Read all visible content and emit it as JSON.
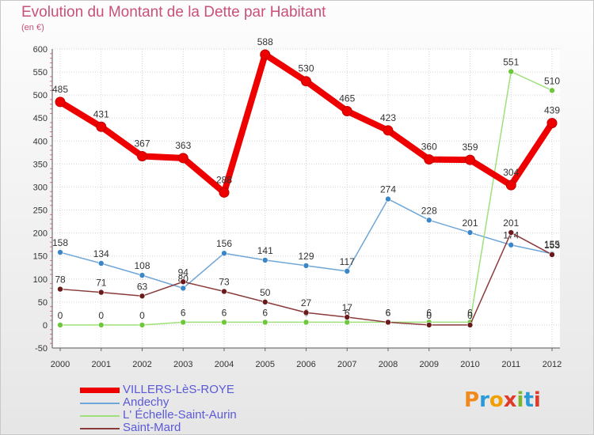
{
  "title": "Evolution du Montant de la Dette par Habitant",
  "subtitle": "(en €)",
  "logo": {
    "letters": [
      "P",
      "r",
      "o",
      "x",
      "i",
      "t",
      "i"
    ],
    "colors": [
      "#f08a1c",
      "#2a9ad8",
      "#f0a000",
      "#e03b2a",
      "#7ab82a",
      "#2a9ad8",
      "#e03b2a"
    ]
  },
  "chart_data": {
    "type": "line",
    "x": [
      "2000",
      "2001",
      "2002",
      "2003",
      "2004",
      "2005",
      "2006",
      "2007",
      "2008",
      "2009",
      "2010",
      "2011",
      "2012"
    ],
    "ylim": [
      -50,
      600
    ],
    "yticks": [
      "-50",
      "0",
      "50",
      "100",
      "150",
      "200",
      "250",
      "300",
      "350",
      "400",
      "450",
      "500",
      "550",
      "600"
    ],
    "grid": true,
    "legend_position": "bottom-left",
    "series": [
      {
        "name": "VILLERS-LèS-ROYE",
        "color": "#ee0000",
        "width": 8,
        "marker": 6,
        "values": [
          485,
          431,
          367,
          363,
          288,
          588,
          530,
          465,
          423,
          360,
          359,
          304,
          439
        ],
        "labels": [
          "485",
          "431",
          "367",
          "363",
          "288",
          "588",
          "530",
          "465",
          "423",
          "360",
          "359",
          "304",
          "439"
        ]
      },
      {
        "name": "Andechy",
        "color": "#6fa6d8",
        "width": 1.5,
        "marker": 3.5,
        "marker_color": "#3a86c8",
        "values": [
          158,
          134,
          108,
          80,
          156,
          141,
          129,
          117,
          274,
          228,
          201,
          174,
          155
        ],
        "labels": [
          "158",
          "134",
          "108",
          "80",
          "156",
          "141",
          "129",
          "117",
          "274",
          "228",
          "201",
          "174",
          "155"
        ]
      },
      {
        "name": "L' Échelle-Saint-Aurin",
        "color": "#9ee07a",
        "width": 1.5,
        "marker": 3.5,
        "marker_color": "#6cc83a",
        "values": [
          0,
          0,
          0,
          6,
          6,
          6,
          6,
          6,
          6,
          6,
          6,
          551,
          510
        ],
        "labels": [
          "0",
          "0",
          "0",
          "6",
          "6",
          "6",
          "6",
          "6",
          "6",
          "6",
          "6",
          "551",
          "510"
        ]
      },
      {
        "name": "Saint-Mard",
        "color": "#8a3a3a",
        "width": 1.5,
        "marker": 3.5,
        "marker_color": "#6a1a1a",
        "values": [
          78,
          71,
          63,
          94,
          73,
          50,
          27,
          17,
          6,
          0,
          0,
          201,
          153
        ],
        "labels": [
          "78",
          "71",
          "63",
          "94",
          "73",
          "50",
          "27",
          "17",
          "6",
          "0",
          "0",
          "201",
          "153"
        ]
      }
    ]
  }
}
